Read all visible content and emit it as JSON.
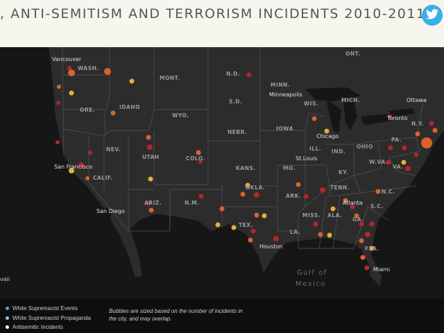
{
  "header": {
    "title": ", ANTI-SEMITISM AND TERRORISM INCIDENTS 2010-2011",
    "share_icon": "twitter-icon"
  },
  "map": {
    "state_labels": [
      "WASH.",
      "MONT.",
      "N.D.",
      "MINN.",
      "ORE.",
      "IDAHO",
      "WYO.",
      "S.D.",
      "WIS.",
      "MICH.",
      "NEBR.",
      "IOWA",
      "NEV.",
      "UTAH",
      "COLO.",
      "ILL.",
      "IND.",
      "OHIO",
      "PA.",
      "N.Y.",
      "CALIF.",
      "KANS.",
      "MO.",
      "KY.",
      "W.VA.",
      "VA.",
      "ARIZ.",
      "N.M.",
      "OKLA.",
      "TENN.",
      "N.C.",
      "ARK.",
      "S.C.",
      "TEX.",
      "MISS.",
      "ALA.",
      "GA.",
      "LA.",
      "FLA."
    ],
    "country_labels": [
      "ONT."
    ],
    "cities": [
      "Vancouver",
      "Minneapolis",
      "Ottawa",
      "Toronto",
      "Chicago",
      "St.Louis",
      "San Francisco",
      "San Diego",
      "Atlanta",
      "Houston",
      "Miami"
    ],
    "water_labels": [
      "Gulf of",
      "Mexico"
    ],
    "edge_label": "vaii",
    "colors": {
      "events": "#b3262b",
      "propaganda": "#e0b23c",
      "mid": "#d9632a",
      "background": "#1b1b1b"
    }
  },
  "legend": {
    "items": [
      {
        "label": "White Supremacist Events",
        "color": "#5aa2d8"
      },
      {
        "label": "White Supremacist Propaganda",
        "color": "#7fd0e8"
      },
      {
        "label": "Antisemitic Incidents",
        "color": "#ffffff"
      }
    ],
    "note": "Bubbles are sized based on the number of incidents in the city, and may overlap."
  }
}
